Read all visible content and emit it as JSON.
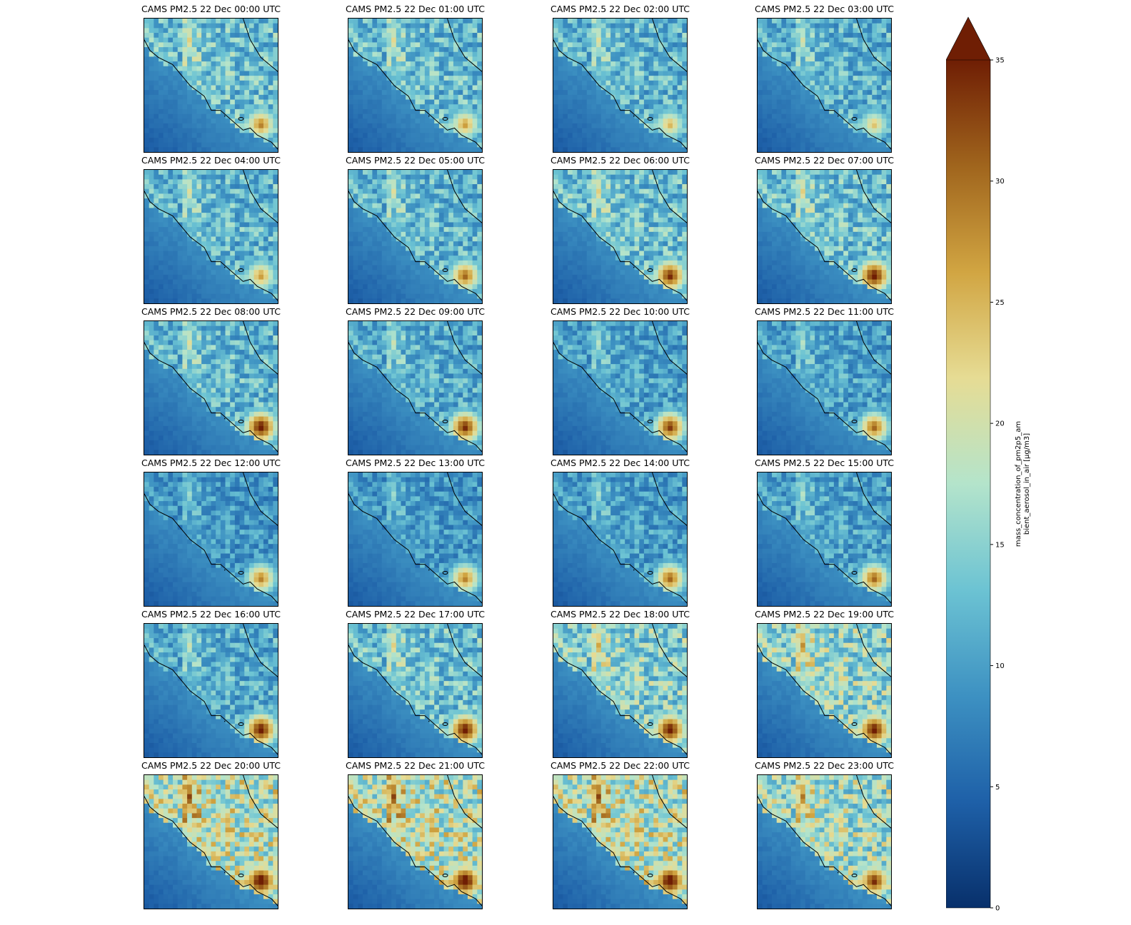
{
  "figure": {
    "titles": [
      "CAMS PM2.5 22 Dec 00:00 UTC",
      "CAMS PM2.5 22 Dec 01:00 UTC",
      "CAMS PM2.5 22 Dec 02:00 UTC",
      "CAMS PM2.5 22 Dec 03:00 UTC",
      "CAMS PM2.5 22 Dec 04:00 UTC",
      "CAMS PM2.5 22 Dec 05:00 UTC",
      "CAMS PM2.5 22 Dec 06:00 UTC",
      "CAMS PM2.5 22 Dec 07:00 UTC",
      "CAMS PM2.5 22 Dec 08:00 UTC",
      "CAMS PM2.5 22 Dec 09:00 UTC",
      "CAMS PM2.5 22 Dec 10:00 UTC",
      "CAMS PM2.5 22 Dec 11:00 UTC",
      "CAMS PM2.5 22 Dec 12:00 UTC",
      "CAMS PM2.5 22 Dec 13:00 UTC",
      "CAMS PM2.5 22 Dec 14:00 UTC",
      "CAMS PM2.5 22 Dec 15:00 UTC",
      "CAMS PM2.5 22 Dec 16:00 UTC",
      "CAMS PM2.5 22 Dec 17:00 UTC",
      "CAMS PM2.5 22 Dec 18:00 UTC",
      "CAMS PM2.5 22 Dec 19:00 UTC",
      "CAMS PM2.5 22 Dec 20:00 UTC",
      "CAMS PM2.5 22 Dec 21:00 UTC",
      "CAMS PM2.5 22 Dec 22:00 UTC",
      "CAMS PM2.5 22 Dec 23:00 UTC"
    ]
  },
  "chart_data": {
    "type": "heatmap",
    "series_label": "CAMS PM2.5",
    "frames": [
      "22 Dec 00:00 UTC",
      "22 Dec 01:00 UTC",
      "22 Dec 02:00 UTC",
      "22 Dec 03:00 UTC",
      "22 Dec 04:00 UTC",
      "22 Dec 05:00 UTC",
      "22 Dec 06:00 UTC",
      "22 Dec 07:00 UTC",
      "22 Dec 08:00 UTC",
      "22 Dec 09:00 UTC",
      "22 Dec 10:00 UTC",
      "22 Dec 11:00 UTC",
      "22 Dec 12:00 UTC",
      "22 Dec 13:00 UTC",
      "22 Dec 14:00 UTC",
      "22 Dec 15:00 UTC",
      "22 Dec 16:00 UTC",
      "22 Dec 17:00 UTC",
      "22 Dec 18:00 UTC",
      "22 Dec 19:00 UTC",
      "22 Dec 20:00 UTC",
      "22 Dec 21:00 UTC",
      "22 Dec 22:00 UTC",
      "22 Dec 23:00 UTC"
    ],
    "approx_max_pm25_ugm3": [
      30,
      28,
      26,
      25,
      28,
      32,
      36,
      38,
      38,
      36,
      35,
      32,
      30,
      30,
      32,
      32,
      38,
      38,
      38,
      38,
      40,
      40,
      40,
      36
    ],
    "approx_inland_mean_ugm3": [
      14,
      13.5,
      13,
      12.5,
      13,
      13,
      14,
      14,
      13,
      12,
      11,
      11,
      10,
      10,
      10.5,
      11,
      12,
      14,
      16,
      17,
      20,
      20,
      20,
      18
    ],
    "colorbar": {
      "label": "mass_concentration_of_pm2p5_am\nbient_aerosol_in_air [µg/m3]",
      "min": 0,
      "max": 35,
      "extend": "max",
      "ticks": [
        0,
        5,
        10,
        15,
        20,
        25,
        30,
        35
      ],
      "colormap": [
        "#08306b",
        "#1e60a8",
        "#3d91c2",
        "#6cc3d3",
        "#b4e4cb",
        "#e6dc94",
        "#d1a542",
        "#a0651d",
        "#6f1e04"
      ]
    },
    "grid": false
  }
}
